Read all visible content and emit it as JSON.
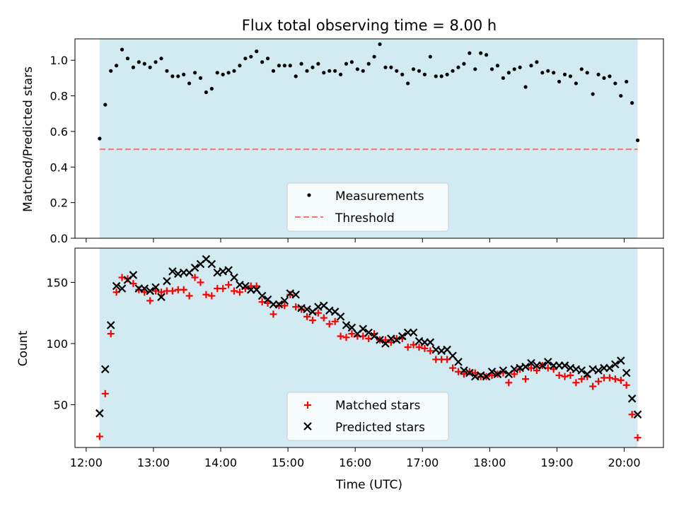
{
  "chart_data": [
    {
      "type": "scatter",
      "title": "Flux total observing time = 8.00 h",
      "ylabel": "Matched/Predicted stars",
      "xlabel": "",
      "ylim": [
        0,
        1.12
      ],
      "yticks": [
        0.0,
        0.2,
        0.4,
        0.6,
        0.8,
        1.0
      ],
      "ytick_labels": [
        "0.0",
        "0.2",
        "0.4",
        "0.6",
        "0.8",
        "1.0"
      ],
      "shaded_span": [
        "12:12",
        "20:12"
      ],
      "shade_color": "#add8e6",
      "grid": false,
      "legend": {
        "placement": "bottom-center",
        "entries": [
          {
            "label": "Measurements",
            "marker": "dot",
            "color": "#000000"
          },
          {
            "label": "Threshold",
            "marker": "dashed-line",
            "color": "#ff7070"
          }
        ]
      },
      "threshold": 0.5,
      "series": [
        {
          "name": "Measurements",
          "x": [
            "12:12",
            "12:17",
            "12:22",
            "12:27",
            "12:32",
            "12:37",
            "12:42",
            "12:47",
            "12:52",
            "12:57",
            "13:02",
            "13:07",
            "13:12",
            "13:17",
            "13:22",
            "13:27",
            "13:32",
            "13:37",
            "13:42",
            "13:47",
            "13:52",
            "13:57",
            "14:02",
            "14:07",
            "14:12",
            "14:17",
            "14:22",
            "14:27",
            "14:32",
            "14:37",
            "14:42",
            "14:47",
            "14:52",
            "14:57",
            "15:02",
            "15:07",
            "15:12",
            "15:17",
            "15:22",
            "15:27",
            "15:32",
            "15:37",
            "15:42",
            "15:47",
            "15:52",
            "15:57",
            "16:02",
            "16:07",
            "16:12",
            "16:17",
            "16:22",
            "16:27",
            "16:32",
            "16:37",
            "16:42",
            "16:47",
            "16:52",
            "16:57",
            "17:02",
            "17:07",
            "17:12",
            "17:17",
            "17:22",
            "17:27",
            "17:32",
            "17:37",
            "17:42",
            "17:47",
            "17:52",
            "17:57",
            "18:02",
            "18:07",
            "18:12",
            "18:17",
            "18:22",
            "18:27",
            "18:32",
            "18:37",
            "18:42",
            "18:47",
            "18:52",
            "18:57",
            "19:02",
            "19:07",
            "19:12",
            "19:17",
            "19:22",
            "19:27",
            "19:32",
            "19:37",
            "19:42",
            "19:47",
            "19:52",
            "19:57",
            "20:02",
            "20:07",
            "20:12"
          ],
          "values": [
            0.56,
            0.75,
            0.94,
            0.97,
            1.06,
            1.01,
            0.96,
            0.99,
            0.98,
            0.96,
            0.99,
            1.01,
            0.94,
            0.91,
            0.91,
            0.92,
            0.87,
            0.93,
            0.9,
            0.82,
            0.84,
            0.93,
            0.92,
            0.93,
            0.94,
            0.97,
            1.01,
            1.02,
            1.05,
            0.99,
            1.01,
            0.94,
            0.97,
            0.97,
            0.97,
            0.91,
            0.98,
            0.94,
            0.96,
            0.98,
            0.93,
            0.94,
            0.94,
            0.92,
            0.98,
            0.99,
            0.95,
            0.94,
            0.98,
            1.02,
            1.09,
            0.96,
            0.96,
            0.94,
            0.92,
            0.87,
            0.95,
            0.94,
            0.92,
            1.02,
            0.91,
            0.91,
            0.92,
            0.94,
            0.96,
            0.98,
            1.04,
            0.95,
            1.04,
            1.03,
            0.95,
            0.97,
            0.9,
            0.93,
            0.95,
            0.96,
            0.85,
            0.97,
            0.99,
            0.93,
            0.94,
            0.93,
            0.88,
            0.92,
            0.91,
            0.87,
            0.95,
            0.93,
            0.81,
            0.92,
            0.9,
            0.91,
            0.87,
            0.8,
            0.88,
            0.76,
            0.55
          ]
        }
      ]
    },
    {
      "type": "scatter",
      "title": "",
      "xlabel": "Time (UTC)",
      "ylabel": "Count",
      "ylim": [
        15,
        178
      ],
      "yticks": [
        50,
        100,
        150
      ],
      "ytick_labels": [
        "50",
        "100",
        "150"
      ],
      "xticks": [
        "12:00",
        "13:00",
        "14:00",
        "15:00",
        "16:00",
        "17:00",
        "18:00",
        "19:00",
        "20:00"
      ],
      "xrange": [
        "11:50",
        "20:35"
      ],
      "shaded_span": [
        "12:12",
        "20:12"
      ],
      "shade_color": "#add8e6",
      "grid": false,
      "legend": {
        "placement": "bottom-center",
        "entries": [
          {
            "label": "Matched stars",
            "marker": "plus",
            "color": "#ff0000"
          },
          {
            "label": "Predicted stars",
            "marker": "x",
            "color": "#000000"
          }
        ]
      },
      "series": [
        {
          "name": "Matched stars",
          "x": [
            "12:12",
            "12:17",
            "12:22",
            "12:27",
            "12:32",
            "12:37",
            "12:42",
            "12:47",
            "12:52",
            "12:57",
            "13:02",
            "13:07",
            "13:12",
            "13:17",
            "13:22",
            "13:27",
            "13:32",
            "13:37",
            "13:42",
            "13:47",
            "13:52",
            "13:57",
            "14:02",
            "14:07",
            "14:12",
            "14:17",
            "14:22",
            "14:27",
            "14:32",
            "14:37",
            "14:42",
            "14:47",
            "14:52",
            "14:57",
            "15:02",
            "15:07",
            "15:12",
            "15:17",
            "15:22",
            "15:27",
            "15:32",
            "15:37",
            "15:42",
            "15:47",
            "15:52",
            "15:57",
            "16:02",
            "16:07",
            "16:12",
            "16:17",
            "16:22",
            "16:27",
            "16:32",
            "16:37",
            "16:42",
            "16:47",
            "16:52",
            "16:57",
            "17:02",
            "17:07",
            "17:12",
            "17:17",
            "17:22",
            "17:27",
            "17:32",
            "17:37",
            "17:42",
            "17:47",
            "17:52",
            "17:57",
            "18:02",
            "18:07",
            "18:12",
            "18:17",
            "18:22",
            "18:27",
            "18:32",
            "18:37",
            "18:42",
            "18:47",
            "18:52",
            "18:57",
            "19:02",
            "19:07",
            "19:12",
            "19:17",
            "19:22",
            "19:27",
            "19:32",
            "19:37",
            "19:42",
            "19:47",
            "19:52",
            "19:57",
            "20:02",
            "20:07",
            "20:12"
          ],
          "values": [
            24,
            59,
            108,
            142,
            154,
            153,
            149,
            144,
            142,
            135,
            143,
            142,
            143,
            143,
            144,
            144,
            139,
            154,
            150,
            140,
            139,
            145,
            145,
            148,
            143,
            142,
            145,
            147,
            147,
            134,
            133,
            124,
            131,
            131,
            140,
            130,
            128,
            122,
            119,
            125,
            121,
            116,
            118,
            106,
            105,
            108,
            106,
            106,
            104,
            108,
            103,
            103,
            101,
            104,
            104,
            97,
            99,
            97,
            96,
            94,
            87,
            87,
            87,
            80,
            77,
            75,
            77,
            76,
            73,
            73,
            74,
            75,
            76,
            68,
            75,
            79,
            71,
            80,
            78,
            82,
            80,
            79,
            74,
            73,
            74,
            68,
            71,
            73,
            65,
            69,
            72,
            72,
            71,
            70,
            66,
            42,
            23
          ]
        },
        {
          "name": "Predicted stars",
          "x": [
            "12:12",
            "12:17",
            "12:22",
            "12:27",
            "12:32",
            "12:37",
            "12:42",
            "12:47",
            "12:52",
            "12:57",
            "13:02",
            "13:07",
            "13:12",
            "13:17",
            "13:22",
            "13:27",
            "13:32",
            "13:37",
            "13:42",
            "13:47",
            "13:52",
            "13:57",
            "14:02",
            "14:07",
            "14:12",
            "14:17",
            "14:22",
            "14:27",
            "14:32",
            "14:37",
            "14:42",
            "14:47",
            "14:52",
            "14:57",
            "15:02",
            "15:07",
            "15:12",
            "15:17",
            "15:22",
            "15:27",
            "15:32",
            "15:37",
            "15:42",
            "15:47",
            "15:52",
            "15:57",
            "16:02",
            "16:07",
            "16:12",
            "16:17",
            "16:22",
            "16:27",
            "16:32",
            "16:37",
            "16:42",
            "16:47",
            "16:52",
            "16:57",
            "17:02",
            "17:07",
            "17:12",
            "17:17",
            "17:22",
            "17:27",
            "17:32",
            "17:37",
            "17:42",
            "17:47",
            "17:52",
            "17:57",
            "18:02",
            "18:07",
            "18:12",
            "18:17",
            "18:22",
            "18:27",
            "18:32",
            "18:37",
            "18:42",
            "18:47",
            "18:52",
            "18:57",
            "19:02",
            "19:07",
            "19:12",
            "19:17",
            "19:22",
            "19:27",
            "19:32",
            "19:37",
            "19:42",
            "19:47",
            "19:52",
            "19:57",
            "20:02",
            "20:07",
            "20:12"
          ],
          "values": [
            43,
            79,
            115,
            147,
            145,
            152,
            156,
            145,
            145,
            143,
            146,
            138,
            151,
            159,
            157,
            158,
            158,
            162,
            165,
            169,
            165,
            158,
            159,
            160,
            154,
            148,
            147,
            144,
            144,
            139,
            136,
            132,
            132,
            135,
            141,
            140,
            129,
            128,
            126,
            130,
            131,
            127,
            126,
            122,
            115,
            113,
            108,
            112,
            109,
            106,
            103,
            100,
            104,
            103,
            106,
            109,
            109,
            102,
            101,
            101,
            95,
            94,
            95,
            90,
            85,
            78,
            76,
            73,
            74,
            73,
            77,
            75,
            78,
            75,
            79,
            80,
            81,
            84,
            82,
            82,
            85,
            82,
            82,
            82,
            80,
            79,
            78,
            75,
            79,
            78,
            80,
            80,
            83,
            86,
            76,
            55,
            42
          ]
        }
      ]
    }
  ]
}
